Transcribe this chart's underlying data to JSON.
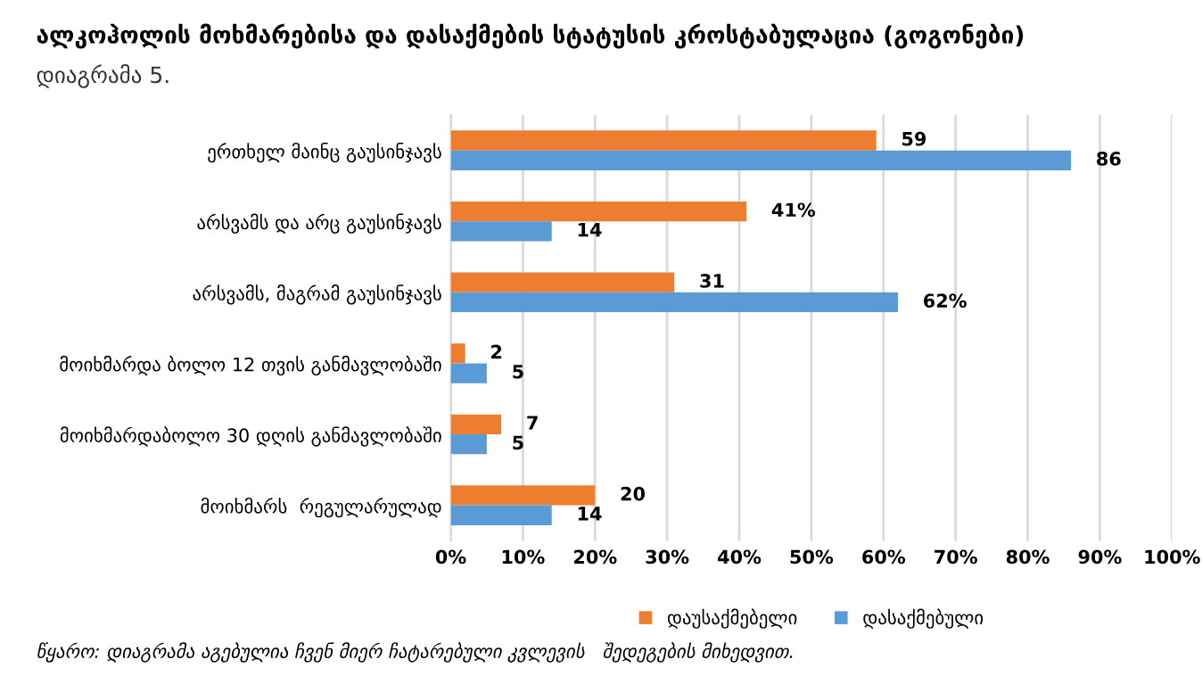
{
  "chart_data": {
    "type": "bar",
    "orientation": "horizontal",
    "title": "ალკოჰოლის მოხმარებისა და დასაქმების სტატუსის კროსტაბულაცია (გოგონები)",
    "subtitle": "დიაგრამა 5.",
    "categories": [
      "ერთხელ მაინც გაუსინჯავს",
      "არსვამს და არც გაუსინჯავს",
      "არსვამს, მაგრამ გაუსინჯავს",
      "მოიხმარდა ბოლო 12 თვის განმავლობაში",
      "მოიხმარდაბოლო 30 დღის განმავლობაში",
      "მოიხმარს  რეგულარულად"
    ],
    "series": [
      {
        "name": "დაუსაქმებელი",
        "color": "#ed7d31",
        "values": [
          59,
          41,
          31,
          2,
          7,
          20
        ],
        "value_labels": [
          "59",
          "41%",
          "31",
          "2",
          "7",
          "20"
        ]
      },
      {
        "name": "დასაქმებული",
        "color": "#5b9bd5",
        "values": [
          86,
          14,
          62,
          5,
          5,
          14
        ],
        "value_labels": [
          "86",
          "14",
          "62%",
          "5",
          "5",
          "14"
        ]
      }
    ],
    "xlim": [
      0,
      100
    ],
    "xticks": [
      {
        "value": 0,
        "label": "0%"
      },
      {
        "value": 10,
        "label": "10%"
      },
      {
        "value": 20,
        "label": "20%"
      },
      {
        "value": 30,
        "label": "30%"
      },
      {
        "value": 40,
        "label": "40%"
      },
      {
        "value": 50,
        "label": "50%"
      },
      {
        "value": 60,
        "label": "60%"
      },
      {
        "value": 70,
        "label": "70%"
      },
      {
        "value": 80,
        "label": "80%"
      },
      {
        "value": 90,
        "label": "90%"
      },
      {
        "value": 100,
        "label": "100%"
      }
    ],
    "grid": "x",
    "legend": "bottom",
    "annotations": [
      "წყარო: დიაგრამა აგებულია ჩვენ მიერ ჩატარებული კვლევის   შედეგების მიხედვით."
    ]
  }
}
